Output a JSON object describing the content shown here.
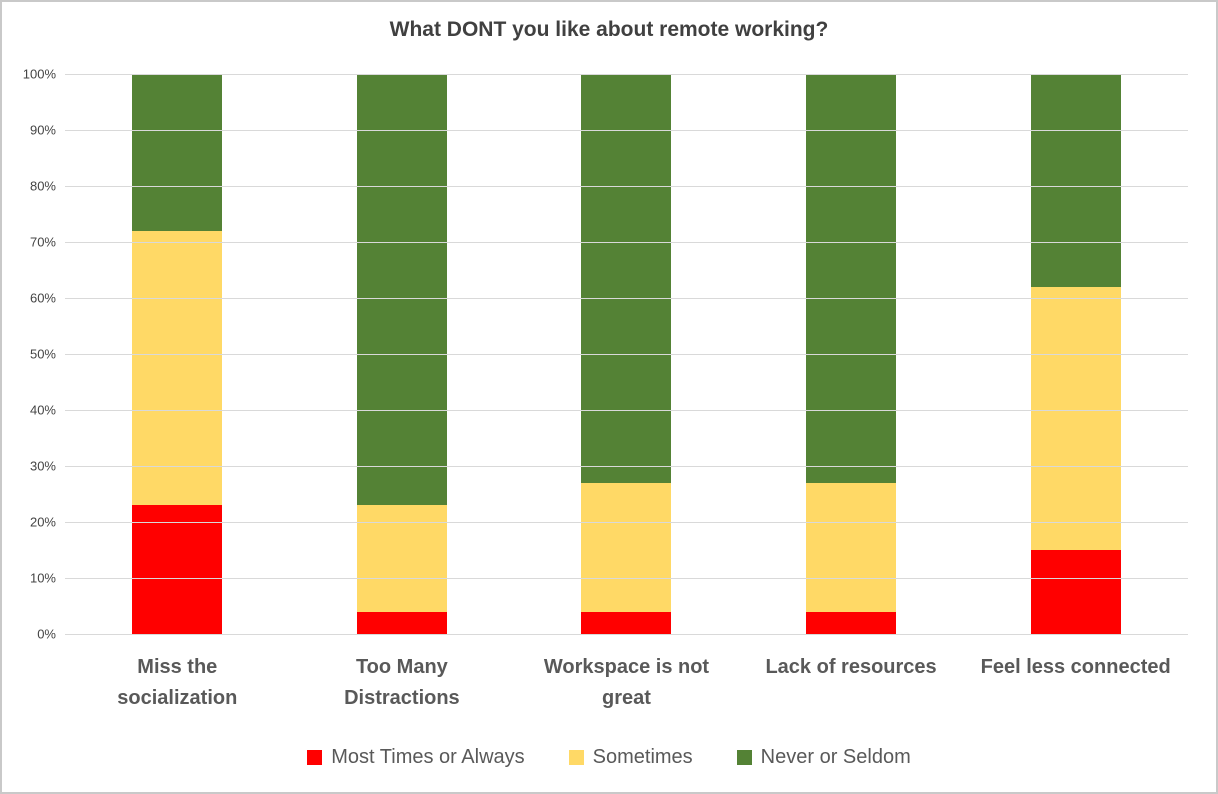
{
  "chart_data": {
    "type": "bar",
    "subtype": "stacked-100-percent",
    "title": "What DONT you like about remote working?",
    "categories": [
      "Miss the socialization",
      "Too Many Distractions",
      "Workspace is not great",
      "Lack of resources",
      "Feel less connected"
    ],
    "series": [
      {
        "name": "Most Times or Always",
        "color": "#FF0000",
        "values": [
          23,
          4,
          4,
          4,
          15
        ]
      },
      {
        "name": "Sometimes",
        "color": "#FFD966",
        "values": [
          49,
          19,
          23,
          23,
          47
        ]
      },
      {
        "name": "Never or Seldom",
        "color": "#548235",
        "values": [
          28,
          77,
          73,
          73,
          38
        ]
      }
    ],
    "ylim": [
      0,
      100
    ],
    "yticks": [
      0,
      10,
      20,
      30,
      40,
      50,
      60,
      70,
      80,
      90,
      100
    ],
    "y_tick_suffix": "%",
    "grid": true,
    "gridline_color": "#d9d9d9",
    "legend_position": "bottom",
    "xlabel": "",
    "ylabel": ""
  }
}
